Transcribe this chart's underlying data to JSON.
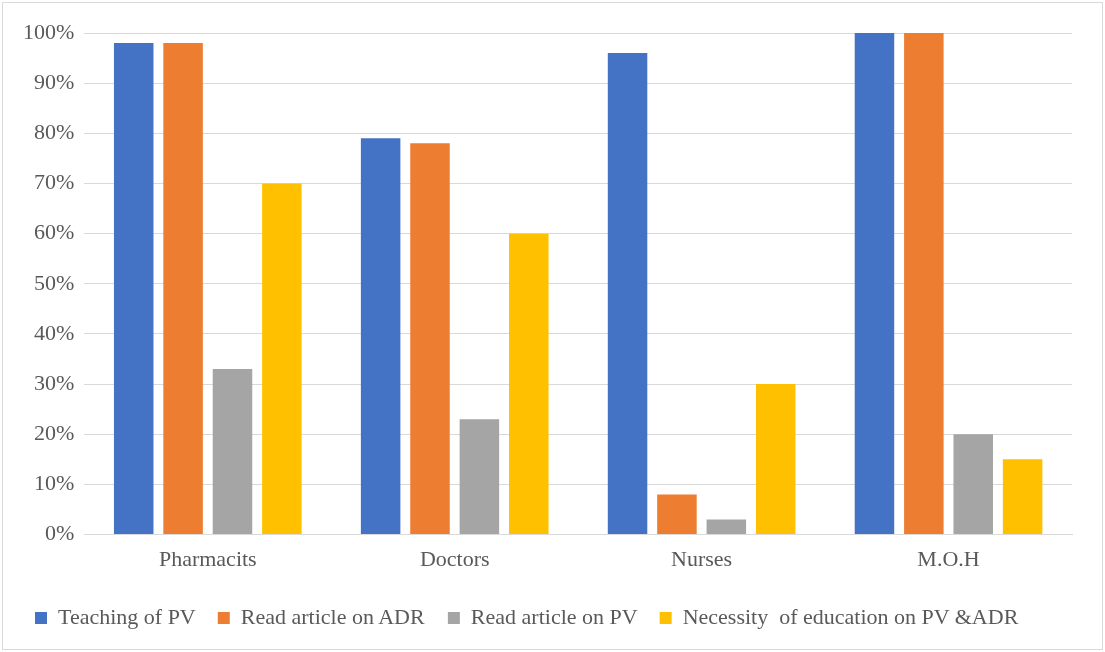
{
  "chart_data": {
    "type": "bar",
    "categories": [
      "Pharmacits",
      "Doctors",
      "Nurses",
      "M.O.H"
    ],
    "series": [
      {
        "name": "Teaching of PV",
        "color": "#4472c4",
        "values": [
          98,
          79,
          96,
          100
        ]
      },
      {
        "name": "Read article on ADR",
        "color": "#ed7d31",
        "values": [
          98,
          78,
          8,
          100
        ]
      },
      {
        "name": "Read article on PV",
        "color": "#a5a5a5",
        "values": [
          33,
          23,
          3,
          20
        ]
      },
      {
        "name": "Necessity  of education on PV &ADR",
        "color": "#ffc000",
        "values": [
          70,
          60,
          30,
          15
        ]
      }
    ],
    "ylim": [
      0,
      100
    ],
    "yticks": [
      {
        "value": 0,
        "label": "0%"
      },
      {
        "value": 10,
        "label": "10%"
      },
      {
        "value": 20,
        "label": "20%"
      },
      {
        "value": 30,
        "label": "30%"
      },
      {
        "value": 40,
        "label": "40%"
      },
      {
        "value": 50,
        "label": "50%"
      },
      {
        "value": 60,
        "label": "60%"
      },
      {
        "value": 70,
        "label": "70%"
      },
      {
        "value": 80,
        "label": "80%"
      },
      {
        "value": 90,
        "label": "90%"
      },
      {
        "value": 100,
        "label": "100%"
      }
    ],
    "grid": "y",
    "legend": "bottom"
  }
}
